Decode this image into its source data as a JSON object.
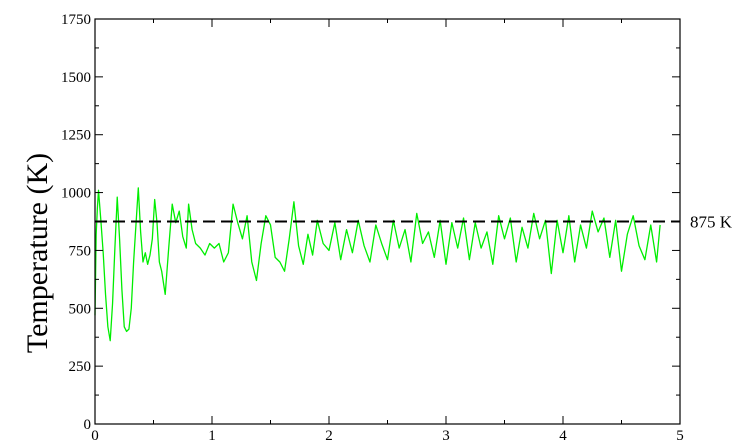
{
  "chart_data": {
    "type": "line",
    "title": "",
    "xlabel": "",
    "ylabel": "Temperature (K)",
    "xlim": [
      0,
      5
    ],
    "ylim": [
      0,
      1750
    ],
    "x_ticks": [
      "0",
      "1",
      "2",
      "3",
      "4",
      "5"
    ],
    "y_ticks": [
      "0",
      "250",
      "500",
      "750",
      "1000",
      "1250",
      "1500",
      "1750"
    ],
    "grid": false,
    "legend": "none",
    "series": [
      {
        "color": "#00ee00",
        "x": [
          0.0,
          0.01,
          0.02,
          0.03,
          0.05,
          0.07,
          0.09,
          0.11,
          0.13,
          0.15,
          0.17,
          0.19,
          0.21,
          0.23,
          0.25,
          0.27,
          0.29,
          0.31,
          0.33,
          0.35,
          0.37,
          0.39,
          0.41,
          0.43,
          0.45,
          0.47,
          0.49,
          0.51,
          0.53,
          0.55,
          0.57,
          0.6,
          0.63,
          0.66,
          0.69,
          0.72,
          0.75,
          0.78,
          0.8,
          0.83,
          0.86,
          0.9,
          0.94,
          0.98,
          1.02,
          1.06,
          1.1,
          1.14,
          1.18,
          1.22,
          1.26,
          1.3,
          1.34,
          1.38,
          1.42,
          1.46,
          1.5,
          1.54,
          1.58,
          1.62,
          1.66,
          1.7,
          1.74,
          1.78,
          1.82,
          1.86,
          1.9,
          1.95,
          2.0,
          2.05,
          2.1,
          2.15,
          2.2,
          2.25,
          2.3,
          2.35,
          2.4,
          2.45,
          2.5,
          2.55,
          2.6,
          2.65,
          2.7,
          2.75,
          2.8,
          2.85,
          2.9,
          2.95,
          3.0,
          3.05,
          3.1,
          3.15,
          3.2,
          3.25,
          3.3,
          3.35,
          3.4,
          3.45,
          3.5,
          3.55,
          3.6,
          3.65,
          3.7,
          3.75,
          3.8,
          3.85,
          3.9,
          3.95,
          4.0,
          4.05,
          4.1,
          4.15,
          4.2,
          4.25,
          4.3,
          4.35,
          4.4,
          4.45,
          4.5,
          4.55,
          4.6,
          4.65,
          4.7,
          4.75,
          4.8,
          4.83
        ],
        "y": [
          470,
          820,
          930,
          1010,
          880,
          740,
          560,
          420,
          360,
          520,
          760,
          980,
          800,
          580,
          420,
          400,
          410,
          500,
          700,
          860,
          1020,
          830,
          700,
          740,
          690,
          730,
          800,
          970,
          870,
          700,
          660,
          560,
          760,
          950,
          870,
          920,
          810,
          760,
          950,
          840,
          780,
          760,
          730,
          780,
          760,
          780,
          700,
          740,
          950,
          870,
          800,
          900,
          700,
          620,
          780,
          900,
          860,
          720,
          700,
          660,
          800,
          960,
          770,
          690,
          820,
          730,
          880,
          780,
          750,
          870,
          710,
          840,
          740,
          880,
          770,
          700,
          860,
          780,
          710,
          880,
          760,
          840,
          700,
          910,
          780,
          830,
          720,
          880,
          690,
          870,
          760,
          890,
          710,
          870,
          760,
          830,
          690,
          900,
          800,
          890,
          700,
          850,
          760,
          910,
          800,
          880,
          650,
          880,
          740,
          900,
          700,
          860,
          760,
          920,
          830,
          890,
          720,
          880,
          660,
          820,
          900,
          770,
          710,
          860,
          700,
          860
        ],
        "line_style": "solid"
      },
      {
        "color": "#000000",
        "x": [
          0,
          5
        ],
        "y": [
          875,
          875
        ],
        "line_style": "dashed",
        "label": "875 K"
      }
    ]
  }
}
